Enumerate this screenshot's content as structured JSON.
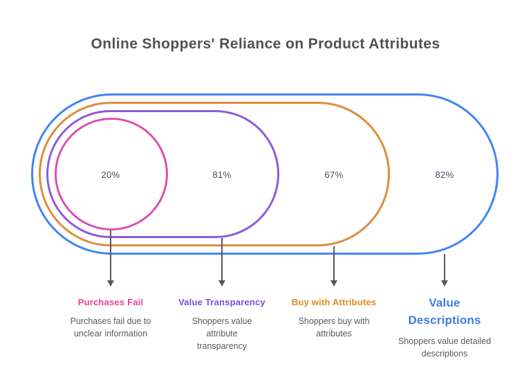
{
  "title": "Online Shoppers' Reliance on Product Attributes",
  "colors": {
    "ring_blue": "#4285F4",
    "ring_orange": "#DC8D3E",
    "ring_purple": "#8A5CDB",
    "ring_pink": "#DD4FAF",
    "arrow": "#58585A",
    "title_text": "#515153",
    "subtitle_text": "#5A5A5C"
  },
  "rings": [
    {
      "percent": "20%",
      "percent_color": "#4B4B4D",
      "ring_color": "#DD4FAF",
      "label": "Purchases Fail",
      "label_color": "#ED3E9B",
      "description": "Purchases fail due to unclear information"
    },
    {
      "percent": "81%",
      "percent_color": "#4B4B4D",
      "ring_color": "#8A5CDB",
      "label": "Value Transparency",
      "label_color": "#7A4BDF",
      "description": "Shoppers value attribute transparency"
    },
    {
      "percent": "67%",
      "percent_color": "#4B4B4D",
      "ring_color": "#DC8D3E",
      "label": "Buy with Attributes",
      "label_color": "#E8871E",
      "description": "Shoppers buy with attributes"
    },
    {
      "percent": "82%",
      "percent_color": "#44546A",
      "ring_color": "#4285F4",
      "label": "Value Descriptions",
      "label_color": "#3E7CE4",
      "description": "Shoppers value detailed descriptions"
    }
  ],
  "chart_data": {
    "type": "nested_venn",
    "title": "Online Shoppers' Reliance on Product Attributes",
    "categories": [
      "Purchases Fail",
      "Value Transparency",
      "Buy with Attributes",
      "Value Descriptions"
    ],
    "values": [
      20,
      81,
      67,
      82
    ],
    "series": [
      {
        "name": "Purchases Fail",
        "value": 20,
        "annotation": "Purchases fail due to unclear information",
        "color": "#DD4FAF"
      },
      {
        "name": "Value Transparency",
        "value": 81,
        "annotation": "Shoppers value attribute transparency",
        "color": "#8A5CDB"
      },
      {
        "name": "Buy with Attributes",
        "value": 67,
        "annotation": "Shoppers buy with attributes",
        "color": "#DC8D3E"
      },
      {
        "name": "Value Descriptions",
        "value": 82,
        "annotation": "Shoppers value detailed descriptions",
        "color": "#4285F4"
      }
    ],
    "legend_position": "bottom",
    "grid": false
  }
}
